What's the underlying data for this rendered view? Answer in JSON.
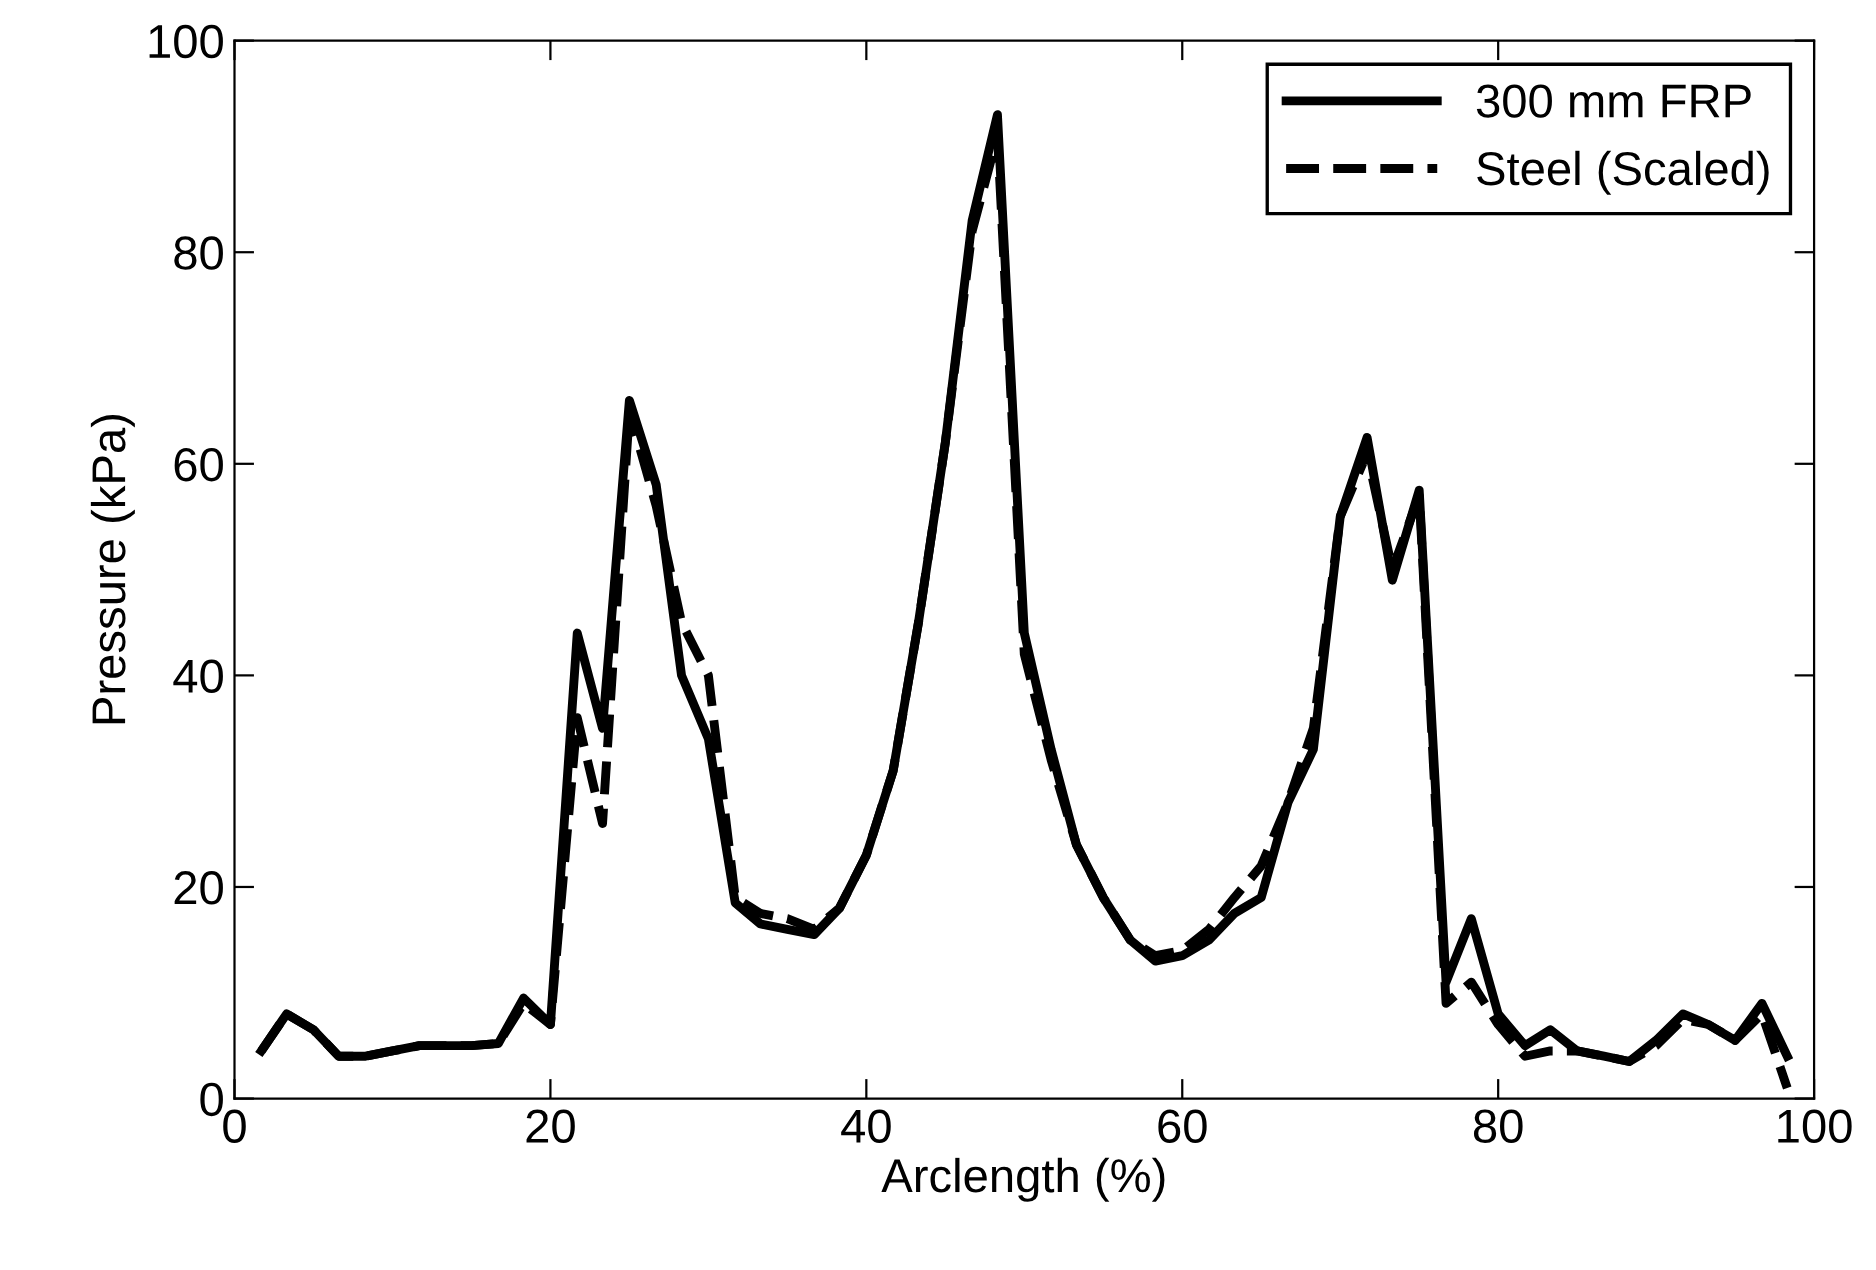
{
  "chart_data": {
    "type": "line",
    "xlabel": "Arclength (%)",
    "ylabel": "Pressure (kPa)",
    "xlim": [
      0,
      100
    ],
    "ylim": [
      0,
      100
    ],
    "xticks": [
      0,
      20,
      40,
      60,
      80,
      100
    ],
    "yticks": [
      0,
      20,
      40,
      60,
      80,
      100
    ],
    "grid": false,
    "legend": "top right",
    "marker": "none",
    "x": [
      1.7,
      3.3,
      5,
      6.6,
      8.3,
      10,
      11.7,
      13.3,
      15,
      16.7,
      18.3,
      20,
      21.7,
      23.3,
      25,
      26.7,
      28.3,
      30,
      31.7,
      33.3,
      35,
      36.7,
      38.3,
      40,
      41.7,
      43.3,
      45,
      46.7,
      48.3,
      50,
      51.7,
      53.3,
      55,
      56.7,
      58.3,
      60,
      61.7,
      63.3,
      65,
      66.7,
      68.3,
      70,
      71.7,
      73.3,
      75,
      76.7,
      78.3,
      80,
      81.7,
      83.3,
      85,
      86.7,
      88.3,
      90,
      91.7,
      93.3,
      95,
      96.7,
      98.3
    ],
    "series": [
      {
        "name": "300 mm FRP",
        "color": "#000000",
        "line_style": "solid",
        "values": [
          4.5,
          8,
          6.5,
          4,
          4,
          4.5,
          5,
          5,
          5,
          5.2,
          9.5,
          7,
          44,
          35,
          66,
          58,
          40,
          34,
          18.5,
          16.5,
          16,
          15.5,
          18,
          23,
          31,
          45,
          62,
          83,
          93,
          44,
          33,
          24,
          19,
          15,
          13,
          13.5,
          15,
          17.5,
          19,
          28,
          33,
          55,
          62.5,
          49,
          57.5,
          11,
          17,
          8,
          5,
          6.5,
          4.5,
          4,
          3.5,
          5.5,
          8,
          7,
          5.5,
          9,
          4
        ]
      },
      {
        "name": "Steel (Scaled)",
        "color": "#000000",
        "line_style": "dashed",
        "values": [
          4.5,
          8,
          6.5,
          4,
          4,
          4.5,
          5,
          5,
          5,
          5.2,
          9,
          7,
          36,
          26,
          65,
          56,
          45,
          40,
          19,
          17.5,
          17,
          16,
          18,
          23,
          31,
          45,
          62,
          82,
          91,
          42,
          32,
          24,
          19,
          15,
          13.5,
          14,
          16,
          19,
          22,
          28,
          35,
          55,
          61,
          50,
          57,
          9,
          11,
          7,
          4,
          4.5,
          4.5,
          4,
          3.5,
          5,
          7.5,
          7,
          5.5,
          8,
          1
        ]
      }
    ]
  }
}
